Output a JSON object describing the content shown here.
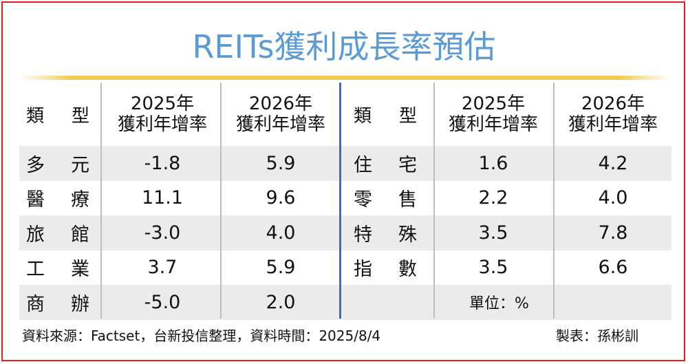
{
  "title": "REITs獲利成長率預估",
  "headers": {
    "type_a": "類",
    "type_b": "型",
    "col1_line1": "2025年",
    "col1_line2": "獲利年增率",
    "col2_line1": "2026年",
    "col2_line2": "獲利年增率"
  },
  "chart_data": {
    "type": "table",
    "title": "REITs獲利成長率預估",
    "columns": [
      "類型",
      "2025年獲利年增率",
      "2026年獲利年增率"
    ],
    "left_rows": [
      {
        "type_a": "多",
        "type_b": "元",
        "y2025": "-1.8",
        "y2026": "5.9"
      },
      {
        "type_a": "醫",
        "type_b": "療",
        "y2025": "11.1",
        "y2026": "9.6"
      },
      {
        "type_a": "旅",
        "type_b": "館",
        "y2025": "-3.0",
        "y2026": "4.0"
      },
      {
        "type_a": "工",
        "type_b": "業",
        "y2025": "3.7",
        "y2026": "5.9"
      },
      {
        "type_a": "商",
        "type_b": "辦",
        "y2025": "-5.0",
        "y2026": "2.0"
      }
    ],
    "right_rows": [
      {
        "type_a": "住",
        "type_b": "宅",
        "y2025": "1.6",
        "y2026": "4.2"
      },
      {
        "type_a": "零",
        "type_b": "售",
        "y2025": "2.2",
        "y2026": "4.0"
      },
      {
        "type_a": "特",
        "type_b": "殊",
        "y2025": "3.5",
        "y2026": "7.8"
      },
      {
        "type_a": "指",
        "type_b": "數",
        "y2025": "3.5",
        "y2026": "6.6"
      }
    ],
    "unit_note": "單位：%"
  },
  "footer": {
    "source": "資料來源：Factset，台新投信整理，資料時間：2025/8/4",
    "credit": "製表：孫彬訓"
  },
  "colors": {
    "title": "#5b9bd5",
    "border": "#e02020",
    "stripe": "#ebebeb",
    "divider": "#3a6fb5",
    "gold": "#f2c94c"
  }
}
